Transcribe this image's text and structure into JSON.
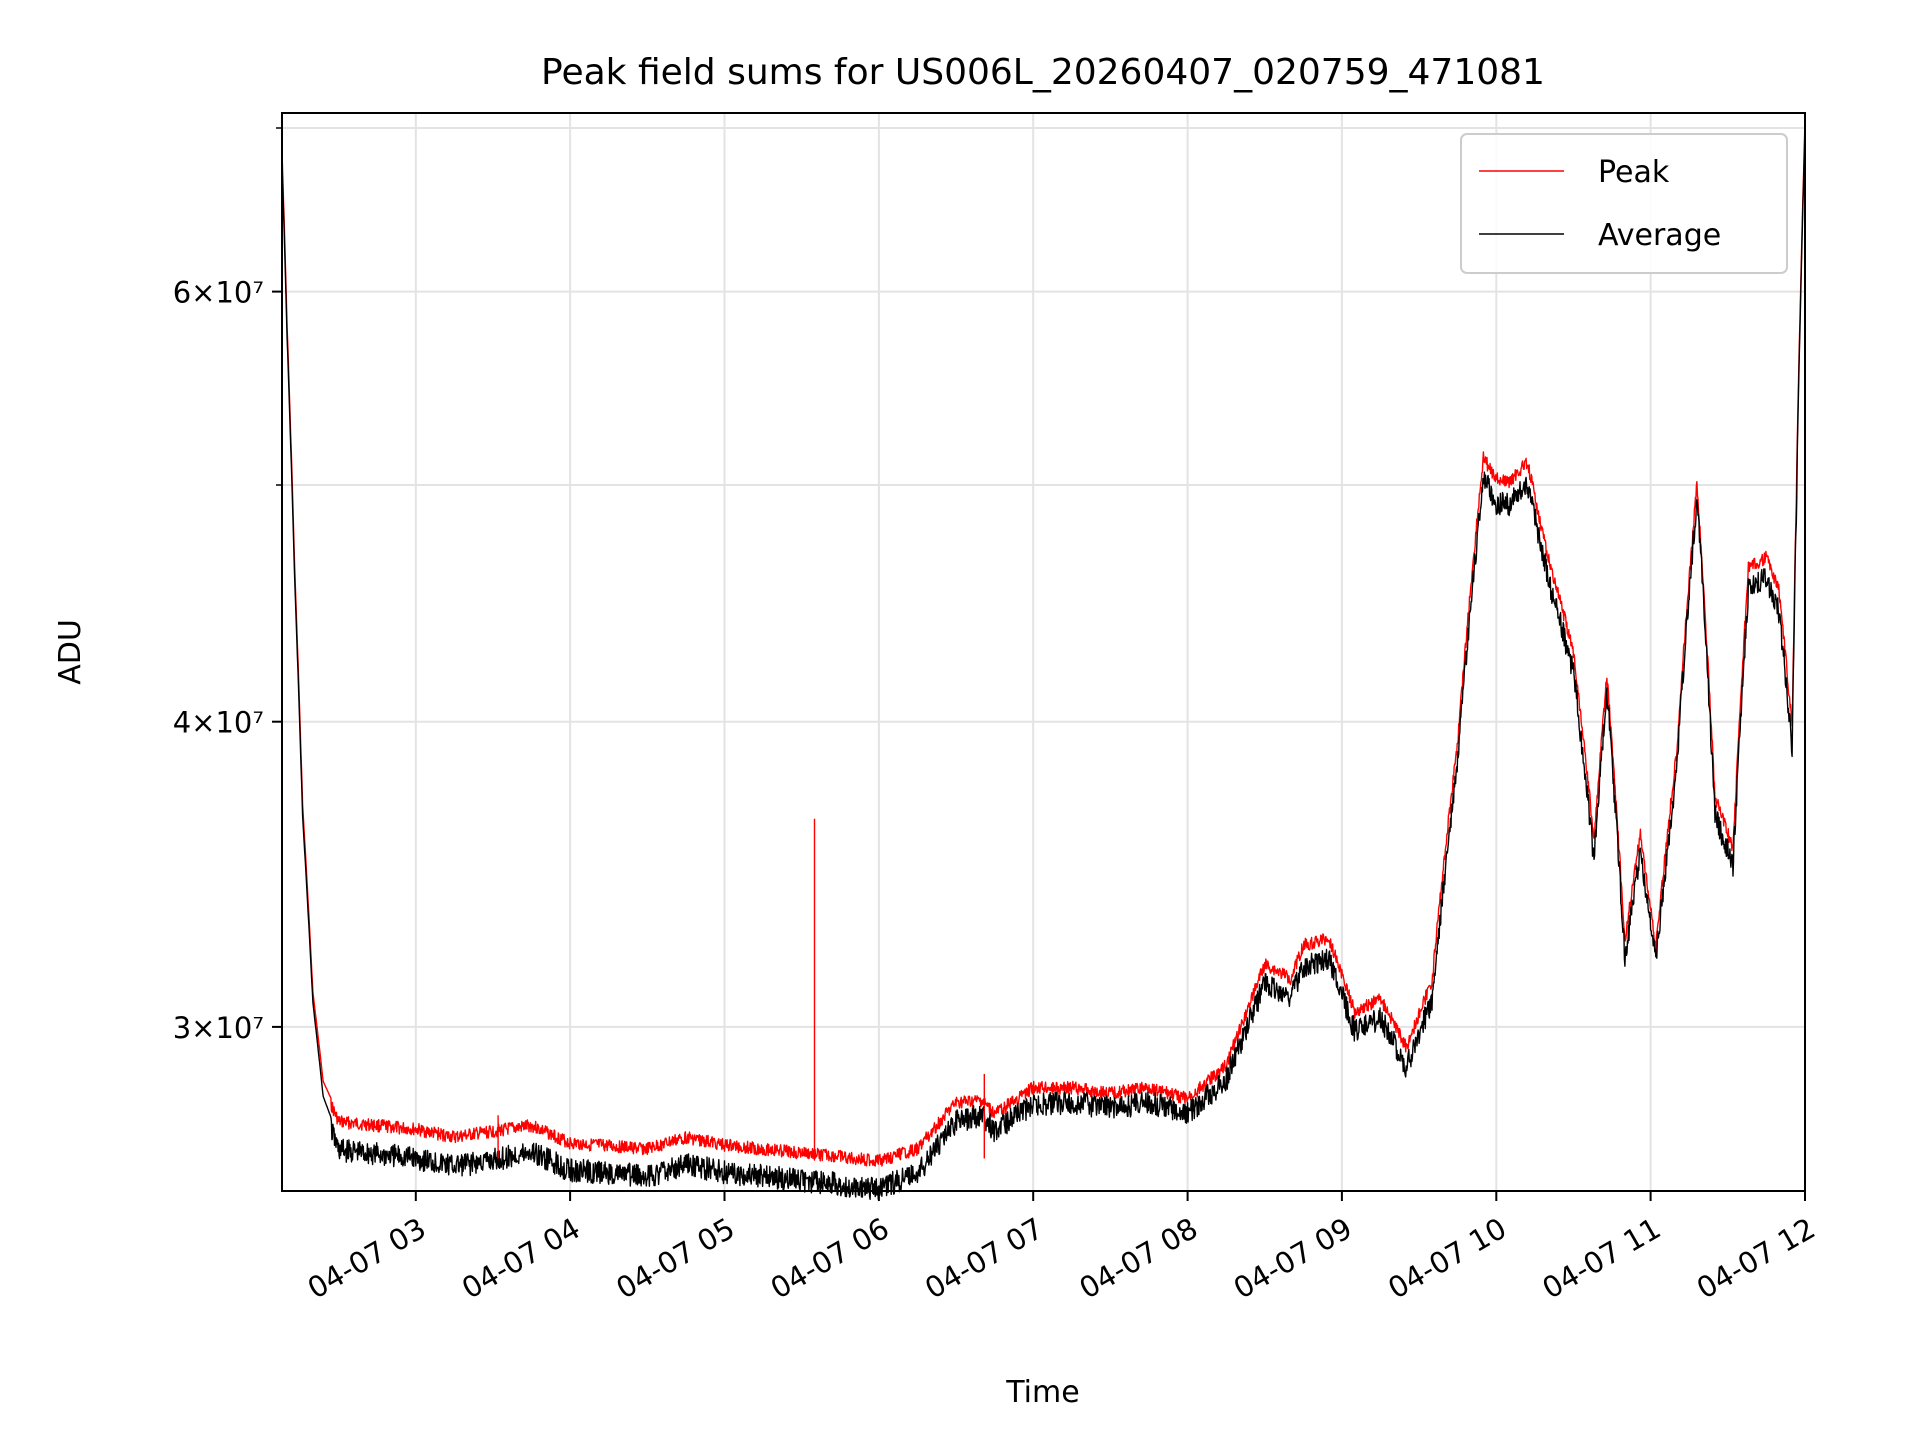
{
  "chart_data": {
    "type": "line",
    "title": "Peak field sums for US006L_20260407_020759_471081",
    "xlabel": "Time",
    "ylabel": "ADU",
    "yscale": "log",
    "ylim": [
      25700000,
      71000000
    ],
    "xlim": [
      "04-07 02:08",
      "04-07 12:00"
    ],
    "grid": true,
    "legend_position": "top-right",
    "x_ticks": [
      "04-07 03",
      "04-07 04",
      "04-07 05",
      "04-07 06",
      "04-07 07",
      "04-07 08",
      "04-07 09",
      "04-07 10",
      "04-07 11",
      "04-07 12"
    ],
    "y_ticks": [
      {
        "value": 30000000,
        "label": "3×10⁷"
      },
      {
        "value": 40000000,
        "label": "4×10⁷"
      },
      {
        "value": 60000000,
        "label": "6×10⁷"
      }
    ],
    "y_minor_ticks": [
      50000000,
      70000000
    ],
    "series": [
      {
        "name": "Peak",
        "color": "#ff0000",
        "values": [
          [
            "04-07 02:08",
            68500000
          ],
          [
            "04-07 02:10",
            58000000
          ],
          [
            "04-07 02:13",
            46000000
          ],
          [
            "04-07 02:16",
            37000000
          ],
          [
            "04-07 02:20",
            31000000
          ],
          [
            "04-07 02:24",
            28500000
          ],
          [
            "04-07 02:30",
            27600000
          ],
          [
            "04-07 03:00",
            27400000
          ],
          [
            "04-07 03:15",
            27200000
          ],
          [
            "04-07 03:30",
            27350000
          ],
          [
            "04-07 03:45",
            27500000
          ],
          [
            "04-07 04:00",
            27050000
          ],
          [
            "04-07 04:30",
            26900000
          ],
          [
            "04-07 04:45",
            27200000
          ],
          [
            "04-07 05:00",
            27000000
          ],
          [
            "04-07 05:30",
            26800000
          ],
          [
            "04-07 06:00",
            26600000
          ],
          [
            "04-07 06:15",
            26900000
          ],
          [
            "04-07 06:30",
            28100000
          ],
          [
            "04-07 06:40",
            28150000
          ],
          [
            "04-07 06:45",
            27800000
          ],
          [
            "04-07 07:00",
            28500000
          ],
          [
            "04-07 07:15",
            28500000
          ],
          [
            "04-07 07:30",
            28350000
          ],
          [
            "04-07 07:45",
            28500000
          ],
          [
            "04-07 08:00",
            28200000
          ],
          [
            "04-07 08:15",
            29100000
          ],
          [
            "04-07 08:30",
            32000000
          ],
          [
            "04-07 08:40",
            31600000
          ],
          [
            "04-07 08:45",
            32600000
          ],
          [
            "04-07 08:55",
            32800000
          ],
          [
            "04-07 09:05",
            30600000
          ],
          [
            "04-07 09:15",
            31000000
          ],
          [
            "04-07 09:25",
            29600000
          ],
          [
            "04-07 09:35",
            31500000
          ],
          [
            "04-07 09:45",
            39500000
          ],
          [
            "04-07 09:55",
            51600000
          ],
          [
            "04-07 10:00",
            50600000
          ],
          [
            "04-07 10:05",
            50400000
          ],
          [
            "04-07 10:12",
            51400000
          ],
          [
            "04-07 10:20",
            47000000
          ],
          [
            "04-07 10:30",
            43000000
          ],
          [
            "04-07 10:38",
            36000000
          ],
          [
            "04-07 10:43",
            42000000
          ],
          [
            "04-07 10:50",
            32700000
          ],
          [
            "04-07 10:56",
            36200000
          ],
          [
            "04-07 11:02",
            32500000
          ],
          [
            "04-07 11:10",
            39000000
          ],
          [
            "04-07 11:18",
            50300000
          ],
          [
            "04-07 11:25",
            37500000
          ],
          [
            "04-07 11:32",
            35700000
          ],
          [
            "04-07 11:38",
            46500000
          ],
          [
            "04-07 11:45",
            47000000
          ],
          [
            "04-07 11:50",
            45500000
          ],
          [
            "04-07 11:55",
            40000000
          ],
          [
            "04-07 12:00",
            70500000
          ]
        ]
      },
      {
        "name": "Average",
        "color": "#000000",
        "values": [
          [
            "04-07 02:08",
            67800000
          ],
          [
            "04-07 02:10",
            57400000
          ],
          [
            "04-07 02:13",
            45500000
          ],
          [
            "04-07 02:16",
            36600000
          ],
          [
            "04-07 02:20",
            30700000
          ],
          [
            "04-07 02:24",
            28100000
          ],
          [
            "04-07 02:30",
            27000000
          ],
          [
            "04-07 03:00",
            26800000
          ],
          [
            "04-07 03:15",
            26600000
          ],
          [
            "04-07 03:30",
            26750000
          ],
          [
            "04-07 03:45",
            26950000
          ],
          [
            "04-07 04:00",
            26500000
          ],
          [
            "04-07 04:30",
            26350000
          ],
          [
            "04-07 04:45",
            26650000
          ],
          [
            "04-07 05:00",
            26450000
          ],
          [
            "04-07 05:30",
            26250000
          ],
          [
            "04-07 06:00",
            26050000
          ],
          [
            "04-07 06:15",
            26400000
          ],
          [
            "04-07 06:30",
            27750000
          ],
          [
            "04-07 06:40",
            27900000
          ],
          [
            "04-07 06:45",
            27500000
          ],
          [
            "04-07 07:00",
            28200000
          ],
          [
            "04-07 07:15",
            28250000
          ],
          [
            "04-07 07:30",
            28100000
          ],
          [
            "04-07 07:45",
            28250000
          ],
          [
            "04-07 08:00",
            27950000
          ],
          [
            "04-07 08:15",
            28850000
          ],
          [
            "04-07 08:30",
            31600000
          ],
          [
            "04-07 08:40",
            31200000
          ],
          [
            "04-07 08:45",
            32100000
          ],
          [
            "04-07 08:55",
            32300000
          ],
          [
            "04-07 09:05",
            30200000
          ],
          [
            "04-07 09:15",
            30600000
          ],
          [
            "04-07 09:25",
            29200000
          ],
          [
            "04-07 09:35",
            31100000
          ],
          [
            "04-07 09:45",
            39000000
          ],
          [
            "04-07 09:55",
            51000000
          ],
          [
            "04-07 10:00",
            49700000
          ],
          [
            "04-07 10:05",
            49600000
          ],
          [
            "04-07 10:12",
            50700000
          ],
          [
            "04-07 10:20",
            46300000
          ],
          [
            "04-07 10:30",
            42400000
          ],
          [
            "04-07 10:38",
            35500000
          ],
          [
            "04-07 10:43",
            41600000
          ],
          [
            "04-07 10:50",
            32300000
          ],
          [
            "04-07 10:56",
            35800000
          ],
          [
            "04-07 11:02",
            32200000
          ],
          [
            "04-07 11:10",
            38600000
          ],
          [
            "04-07 11:18",
            50000000
          ],
          [
            "04-07 11:25",
            37000000
          ],
          [
            "04-07 11:32",
            35300000
          ],
          [
            "04-07 11:38",
            45800000
          ],
          [
            "04-07 11:45",
            46300000
          ],
          [
            "04-07 11:50",
            44800000
          ],
          [
            "04-07 11:55",
            39400000
          ],
          [
            "04-07 12:00",
            70000000
          ]
        ]
      }
    ],
    "annotations": [
      {
        "series": "Peak",
        "type": "spike",
        "x": "04-07 05:35",
        "value": 36500000
      },
      {
        "series": "Peak",
        "type": "spike",
        "x": "04-07 06:41",
        "value": 28700000
      },
      {
        "series": "Peak",
        "type": "spike",
        "x": "04-07 03:32",
        "value": 27600000
      }
    ]
  }
}
